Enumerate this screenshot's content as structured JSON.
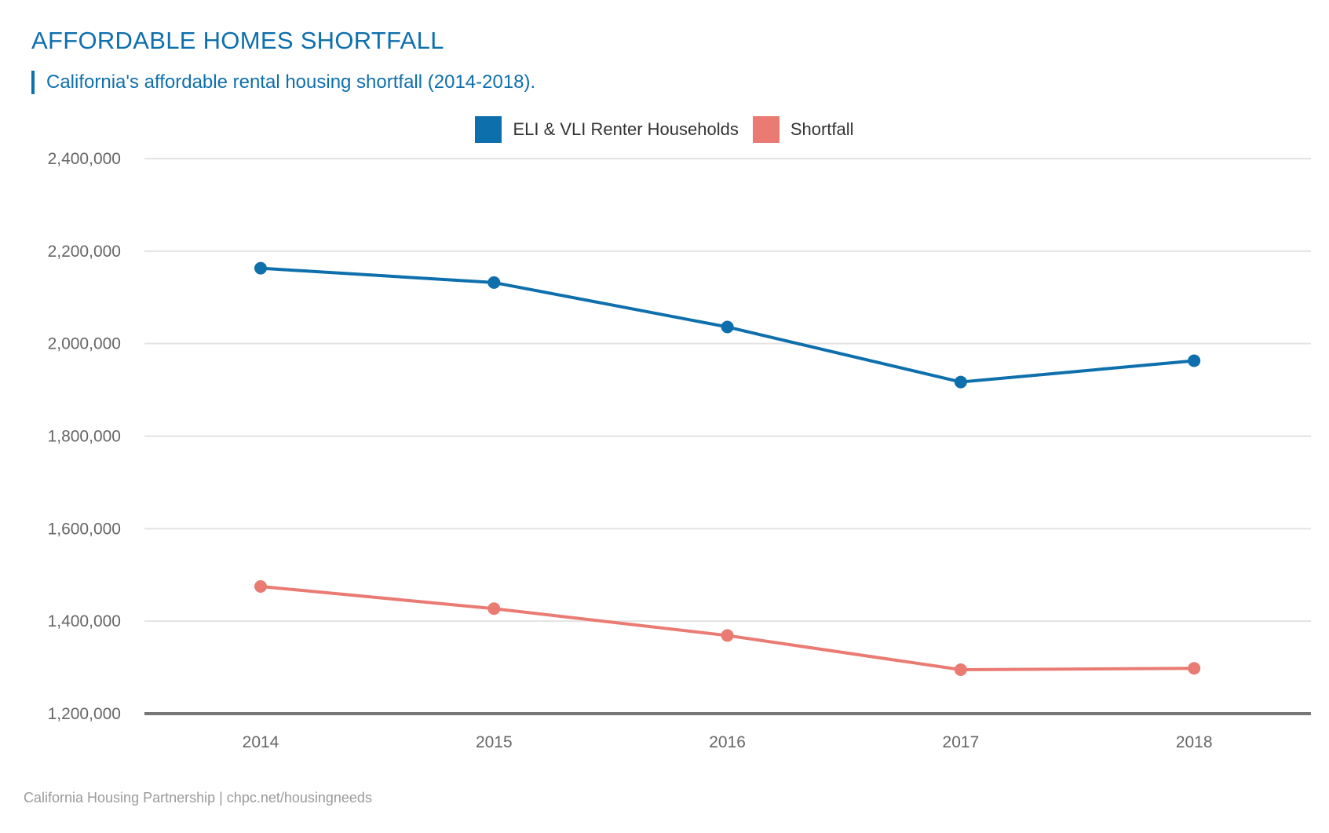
{
  "header": {
    "title": "AFFORDABLE HOMES SHORTFALL",
    "subtitle": "California's affordable rental housing shortfall (2014-2018)."
  },
  "footer": {
    "source": "California Housing Partnership | chpc.net/housingneeds"
  },
  "chart_data": {
    "type": "line",
    "title": "AFFORDABLE HOMES SHORTFALL",
    "subtitle": "California's affordable rental housing shortfall (2014-2018).",
    "xlabel": "",
    "ylabel": "",
    "categories": [
      "2014",
      "2015",
      "2016",
      "2017",
      "2018"
    ],
    "series": [
      {
        "name": "ELI & VLI Renter Households",
        "color": "#0e6fad",
        "values": [
          2163000,
          2132000,
          2036000,
          1917000,
          1963000
        ]
      },
      {
        "name": "Shortfall",
        "color": "#e97b73",
        "values": [
          1475000,
          1427000,
          1369000,
          1295000,
          1298000
        ]
      }
    ],
    "ylim": [
      1200000,
      2400000
    ],
    "yticks": [
      1200000,
      1400000,
      1600000,
      1800000,
      2000000,
      2200000,
      2400000
    ],
    "ytick_labels": [
      "1,200,000",
      "1,400,000",
      "1,600,000",
      "1,800,000",
      "2,000,000",
      "2,200,000",
      "2,400,000"
    ],
    "grid": true,
    "legend_position": "top-center",
    "source": "California Housing Partnership | chpc.net/housingneeds"
  }
}
